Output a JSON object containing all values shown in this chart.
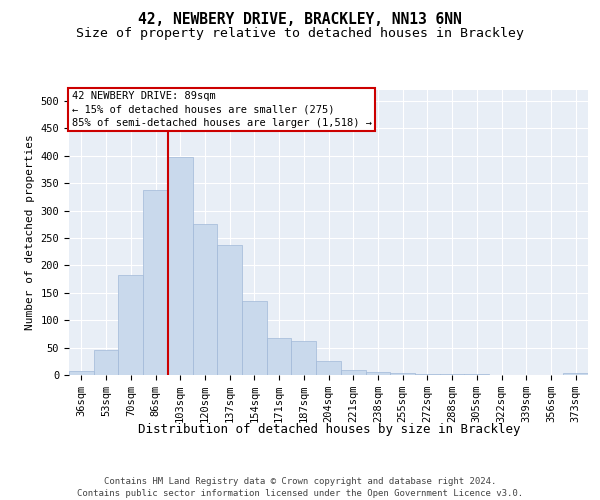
{
  "title_line1": "42, NEWBERY DRIVE, BRACKLEY, NN13 6NN",
  "title_line2": "Size of property relative to detached houses in Brackley",
  "xlabel": "Distribution of detached houses by size in Brackley",
  "ylabel": "Number of detached properties",
  "annotation_line1": "42 NEWBERY DRIVE: 89sqm",
  "annotation_line2": "← 15% of detached houses are smaller (275)",
  "annotation_line3": "85% of semi-detached houses are larger (1,518) →",
  "footer_line1": "Contains HM Land Registry data © Crown copyright and database right 2024.",
  "footer_line2": "Contains public sector information licensed under the Open Government Licence v3.0.",
  "bin_labels": [
    "36sqm",
    "53sqm",
    "70sqm",
    "86sqm",
    "103sqm",
    "120sqm",
    "137sqm",
    "154sqm",
    "171sqm",
    "187sqm",
    "204sqm",
    "221sqm",
    "238sqm",
    "255sqm",
    "272sqm",
    "288sqm",
    "305sqm",
    "322sqm",
    "339sqm",
    "356sqm",
    "373sqm"
  ],
  "bar_values": [
    8,
    46,
    183,
    338,
    397,
    275,
    238,
    135,
    68,
    62,
    25,
    10,
    5,
    3,
    2,
    1,
    1,
    0,
    0,
    0,
    3
  ],
  "bar_color": "#c9d9ec",
  "bar_edge_color": "#a0b8d8",
  "vline_color": "#cc0000",
  "ylim": [
    0,
    520
  ],
  "yticks": [
    0,
    50,
    100,
    150,
    200,
    250,
    300,
    350,
    400,
    450,
    500
  ],
  "bg_color": "#e8eef6",
  "grid_color": "#ffffff",
  "title_fontsize": 10.5,
  "subtitle_fontsize": 9.5,
  "tick_fontsize": 7.5,
  "xlabel_fontsize": 9,
  "ylabel_fontsize": 8,
  "annot_fontsize": 7.5,
  "footer_fontsize": 6.5
}
